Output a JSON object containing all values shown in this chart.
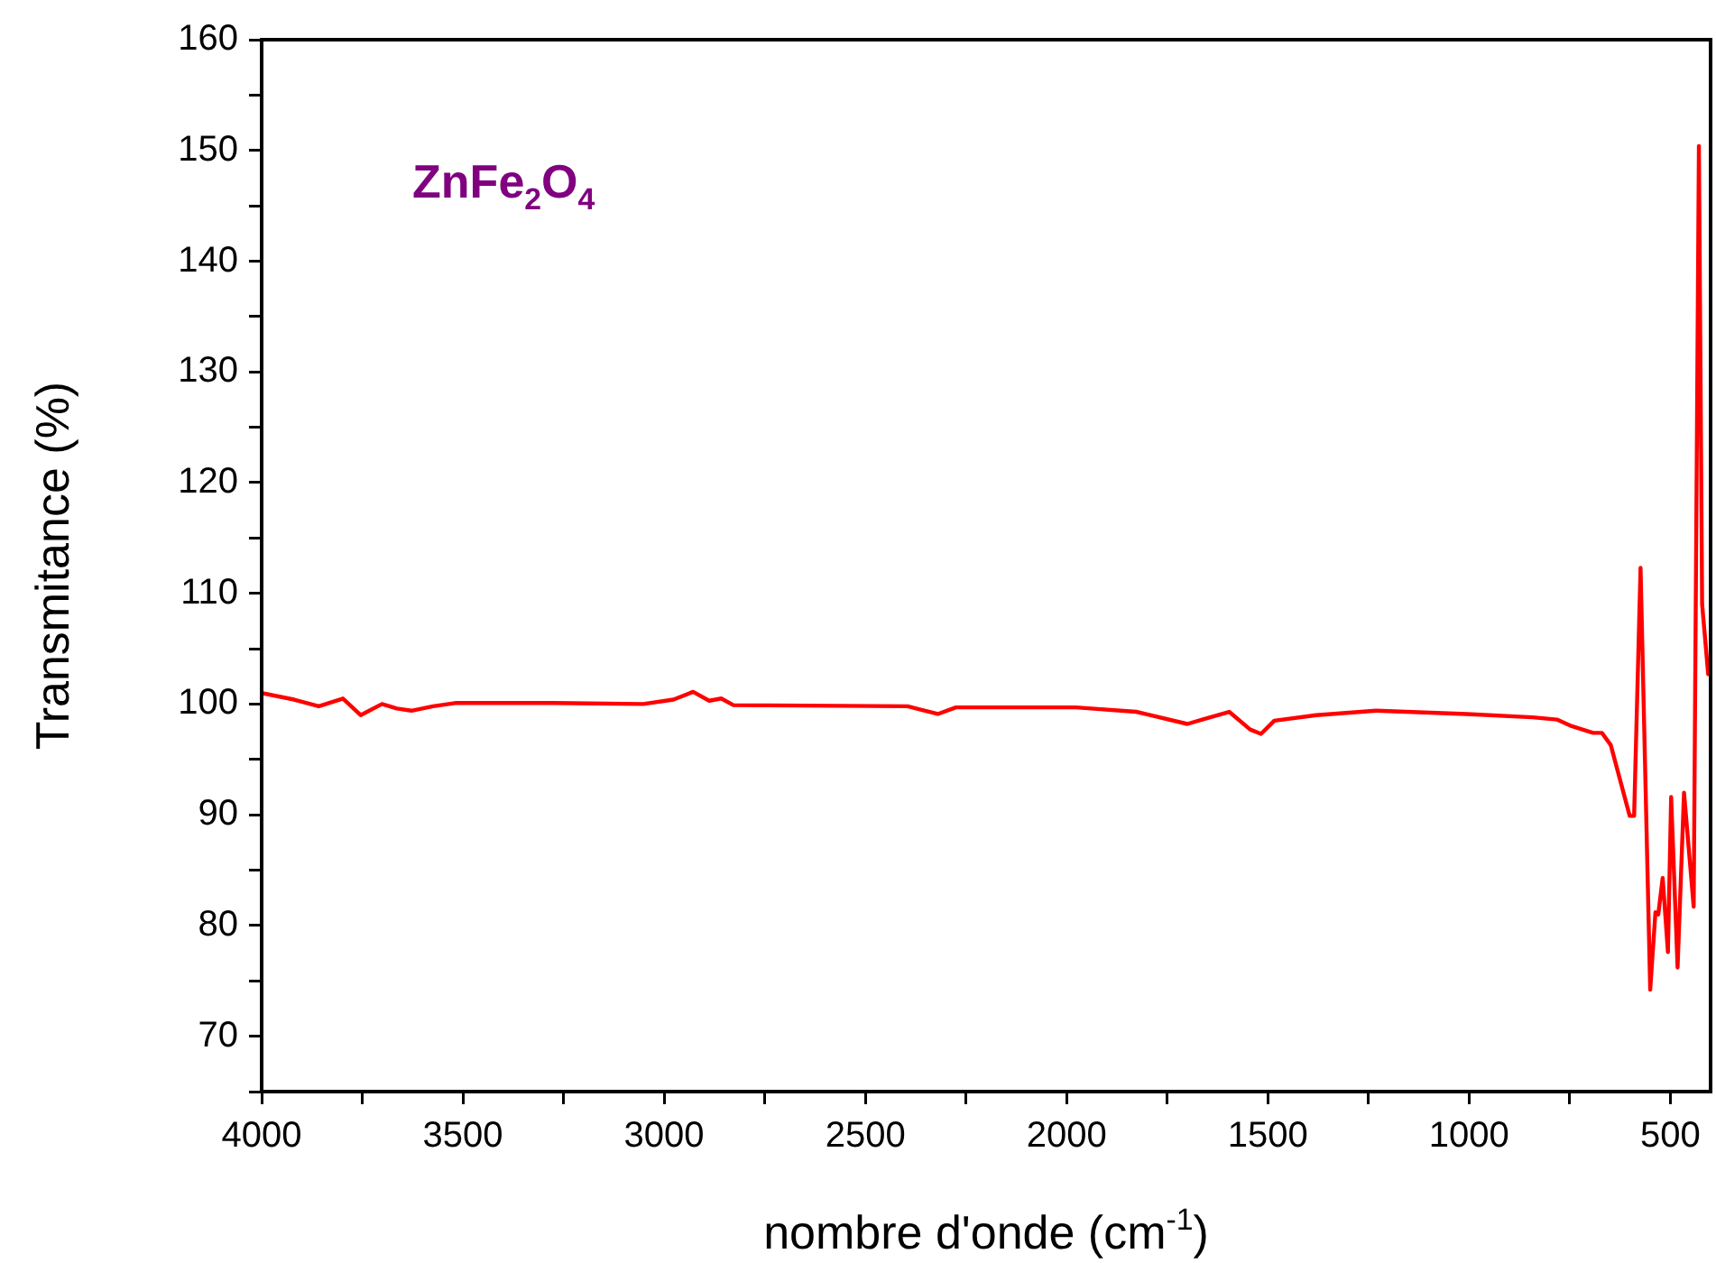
{
  "chart_data": {
    "type": "line",
    "xlabel": "nombre d'onde (cm$^{-1}$)",
    "ylabel": "Transmitance (%)",
    "annotations": [
      "ZnFe$_{2}$O$_{4}$"
    ],
    "xlim": [
      4000,
      400
    ],
    "ylim": [
      65,
      160
    ],
    "xticks": [
      4000,
      {
        "value": 3750,
        "label": null
      },
      3500,
      {
        "value": 3250,
        "label": null
      },
      3000,
      {
        "value": 2750,
        "label": null
      },
      2500,
      {
        "value": 2250,
        "label": null
      },
      2000,
      {
        "value": 1750,
        "label": null
      },
      1500,
      {
        "value": 1250,
        "label": null
      },
      1000,
      {
        "value": 750,
        "label": null
      },
      500
    ],
    "yticks": [
      {
        "value": 65,
        "label": null
      },
      70,
      {
        "value": 75,
        "label": null
      },
      80,
      {
        "value": 85,
        "label": null
      },
      90,
      {
        "value": 95,
        "label": null
      },
      100,
      {
        "value": 105,
        "label": null
      },
      110,
      {
        "value": 115,
        "label": null
      },
      120,
      {
        "value": 125,
        "label": null
      },
      130,
      {
        "value": 135,
        "label": null
      },
      140,
      {
        "value": 145,
        "label": null
      },
      150,
      {
        "value": 155,
        "label": null
      },
      160
    ],
    "grid": false,
    "legend": false,
    "marker": "none",
    "line_style": "solid",
    "series": [
      {
        "color": "#ff0000",
        "x": [
          4000,
          3919,
          3858,
          3798,
          3754,
          3701,
          3664,
          3628,
          3574,
          3516,
          3276,
          3052,
          2977,
          2928,
          2888,
          2858,
          2828,
          2395,
          2320,
          2275,
          1977,
          1827,
          1700,
          1663,
          1596,
          1544,
          1517,
          1484,
          1380,
          1231,
          1006,
          842,
          782,
          745,
          692,
          670,
          648,
          601,
          590,
          574,
          550,
          537,
          530,
          519,
          506,
          498,
          482,
          466,
          442,
          429,
          421,
          406
        ],
        "values": [
          101.0,
          100.4,
          99.8,
          100.5,
          99.0,
          100.0,
          99.6,
          99.4,
          99.8,
          100.1,
          100.1,
          100.0,
          100.4,
          101.1,
          100.3,
          100.5,
          99.9,
          99.8,
          99.1,
          99.7,
          99.7,
          99.3,
          98.2,
          98.6,
          99.3,
          97.7,
          97.3,
          98.5,
          99.0,
          99.4,
          99.1,
          98.8,
          98.6,
          98.0,
          97.4,
          97.4,
          96.3,
          89.9,
          89.9,
          112.3,
          74.2,
          81.2,
          81.0,
          84.3,
          77.6,
          91.6,
          76.2,
          92.0,
          81.7,
          150.4,
          109.0,
          102.7
        ]
      }
    ]
  }
}
